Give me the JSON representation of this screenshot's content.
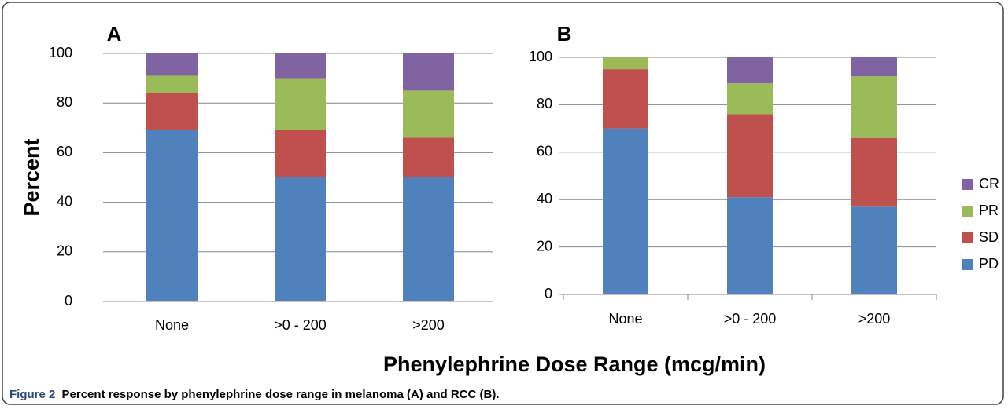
{
  "chart_data": [
    {
      "type": "stacked_bar",
      "title": "A",
      "y_label": "Percent",
      "categories": [
        "None",
        ">0 - 200",
        ">200"
      ],
      "series": [
        {
          "color": "#4f81bd",
          "values": [
            69,
            50,
            50
          ]
        },
        {
          "color": "#c0504d",
          "values": [
            15,
            19,
            16
          ]
        },
        {
          "color": "#9bbb59",
          "values": [
            7,
            21,
            19
          ]
        },
        {
          "color": "#8064a2",
          "values": [
            9,
            10,
            15
          ]
        }
      ],
      "ylim": [
        0,
        100
      ],
      "yticks": [
        0,
        20,
        40,
        60,
        80,
        100
      ],
      "grid": true
    },
    {
      "type": "stacked_bar",
      "title": "B",
      "categories": [
        "None",
        ">0 - 200",
        ">200"
      ],
      "series": [
        {
          "name": "PD",
          "color": "#4f81bd",
          "values": [
            70,
            41,
            37
          ]
        },
        {
          "name": "SD",
          "color": "#c0504d",
          "values": [
            25,
            35,
            29
          ]
        },
        {
          "name": "PR",
          "color": "#9bbb59",
          "values": [
            5,
            13,
            26
          ]
        },
        {
          "name": "CR",
          "color": "#8064a2",
          "values": [
            0,
            11,
            8
          ]
        }
      ],
      "ylim": [
        0,
        100
      ],
      "yticks": [
        0,
        20,
        40,
        60,
        80,
        100
      ],
      "grid": true,
      "legend": "right"
    }
  ],
  "figure": {
    "x_label": "Phenylephrine Dose Range (mcg/min)",
    "caption_label": "Figure 2",
    "caption": "Percent response by phenylephrine dose range in melanoma (A) and RCC (B)."
  }
}
